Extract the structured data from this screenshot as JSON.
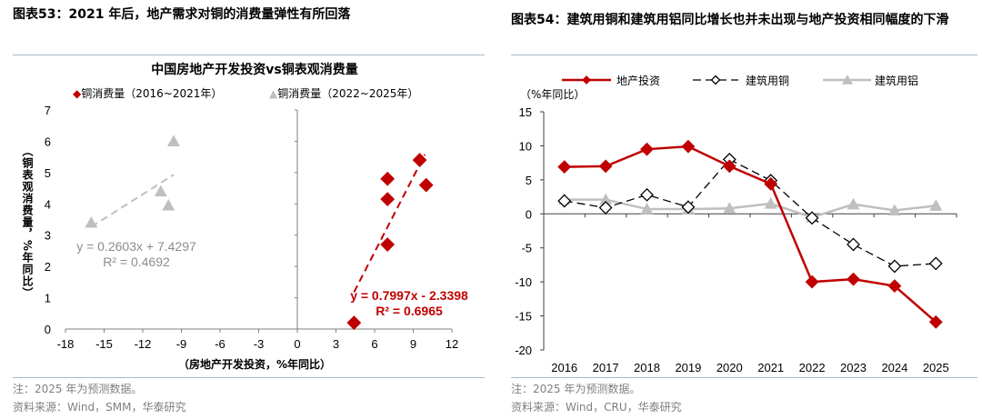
{
  "left": {
    "header": "图表53：2021 年后，地产需求对铜的消费量弹性有所回落",
    "note": "注：2025 年为预测数据。",
    "source": "资料来源：Wind，SMM，华泰研究"
  },
  "right": {
    "header": "图表54：建筑用铜和建筑用铝同比增长也并未出现与地产投资相同幅度的下滑",
    "note": "注：2025 年为预测数据。",
    "source": "资料来源：Wind，CRU，华泰研究"
  },
  "chart_data": [
    {
      "type": "scatter",
      "title": "中国房地产开发投资vs铜表观消费量",
      "xlabel": "（房地产开发投资，%年同比）",
      "ylabel": "（铜表观消费量，%年同比）",
      "xlim": [
        -18,
        12
      ],
      "ylim": [
        0,
        7
      ],
      "xticks": [
        -18,
        -15,
        -12,
        -9,
        -6,
        -3,
        0,
        3,
        6,
        9,
        12
      ],
      "yticks": [
        0,
        1,
        2,
        3,
        4,
        5,
        6,
        7
      ],
      "legend_position": "top",
      "grid": false,
      "series": [
        {
          "name": "铜消费量（2016~2021年）",
          "color": "#c00000",
          "marker": "diamond",
          "points": [
            [
              4.4,
              0.2
            ],
            [
              7.0,
              2.7
            ],
            [
              7.0,
              4.15
            ],
            [
              7.0,
              4.8
            ],
            [
              9.5,
              5.4
            ],
            [
              10.0,
              4.6
            ]
          ],
          "trendline": {
            "slope": 0.7997,
            "intercept": -2.3398,
            "xrange": [
              4.4,
              9.9
            ],
            "label": "y = 0.7997x - 2.3398",
            "r2": "R² = 0.6965"
          }
        },
        {
          "name": "铜消费量（2022~2025年）",
          "color": "#bfbfbf",
          "marker": "triangle",
          "points": [
            [
              -16.0,
              3.4
            ],
            [
              -10.6,
              4.4
            ],
            [
              -10.0,
              3.95
            ],
            [
              -9.6,
              6.0
            ]
          ],
          "trendline": {
            "slope": 0.2603,
            "intercept": 7.4297,
            "xrange": [
              -16.0,
              -9.6
            ],
            "label": "y = 0.2603x + 7.4297",
            "r2": "R² = 0.4692"
          }
        }
      ]
    },
    {
      "type": "line",
      "ylabel": "（%年同比）",
      "categories": [
        "2016",
        "2017",
        "2018",
        "2019",
        "2020",
        "2021",
        "2022",
        "2023",
        "2024",
        "2025"
      ],
      "ylim": [
        -20,
        15
      ],
      "yticks": [
        -20,
        -15,
        -10,
        -5,
        0,
        5,
        10,
        15
      ],
      "legend_position": "top",
      "grid": false,
      "series": [
        {
          "name": "地产投资",
          "color": "#c00000",
          "style": "solid",
          "marker": "diamond-filled",
          "values": [
            6.9,
            7.0,
            9.5,
            9.9,
            7.0,
            4.4,
            -10.0,
            -9.6,
            -10.6,
            -15.9
          ]
        },
        {
          "name": "建筑用铜",
          "color": "#000000",
          "style": "dashed",
          "marker": "diamond-open",
          "values": [
            1.9,
            0.9,
            2.8,
            1.0,
            8.0,
            4.9,
            -0.6,
            -4.5,
            -7.7,
            -7.3
          ]
        },
        {
          "name": "建筑用铝",
          "color": "#bfbfbf",
          "style": "solid",
          "marker": "triangle",
          "values": [
            2.1,
            2.1,
            0.7,
            0.7,
            0.8,
            1.5,
            -0.5,
            1.4,
            0.5,
            1.2
          ]
        }
      ]
    }
  ]
}
